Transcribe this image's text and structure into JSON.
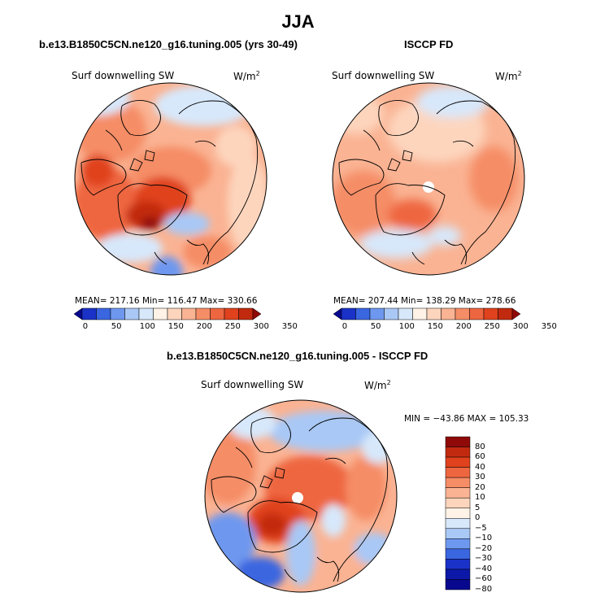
{
  "figure": {
    "main_title": "JJA",
    "top_left": {
      "title": "b.e13.B1850C5CN.ne120_g16.tuning.005 (yrs 30-49)",
      "field": "Surf downwelling SW",
      "units": "W/m",
      "units_exp": "2",
      "stats": "MEAN= 217.16   Min= 116.47   Max= 330.66"
    },
    "top_right": {
      "title": "ISCCP FD",
      "field": "Surf downwelling SW",
      "units": "W/m",
      "units_exp": "2",
      "stats": "MEAN= 207.44   Min= 138.29   Max= 278.66"
    },
    "bottom": {
      "title": "b.e13.B1850C5CN.ne120_g16.tuning.005 - ISCCP FD",
      "field": "Surf downwelling SW",
      "units": "W/m",
      "units_exp": "2",
      "stats": "MIN = −43.86  MAX = 105.33"
    }
  },
  "chart_data": [
    {
      "type": "heatmap",
      "title": "b.e13.B1850C5CN.ne120_g16.tuning.005 (yrs 30-49)",
      "variable": "Surf downwelling SW",
      "units": "W/m2",
      "projection": "polar stereographic (north)",
      "mean": 217.16,
      "min": 116.47,
      "max": 330.66,
      "colorbar_ticks": [
        "0",
        "50",
        "100",
        "150",
        "200",
        "250",
        "300",
        "350"
      ],
      "colorbar_colors": [
        "#08088f",
        "#1a32c8",
        "#3a66e0",
        "#6e98ef",
        "#a9c8f5",
        "#d7e8fb",
        "#fff2e6",
        "#fdd5bd",
        "#fab393",
        "#f58d66",
        "#ee6640",
        "#e0421d",
        "#c22a0f",
        "#8f0a08"
      ]
    },
    {
      "type": "heatmap",
      "title": "ISCCP FD",
      "variable": "Surf downwelling SW",
      "units": "W/m2",
      "projection": "polar stereographic (north)",
      "mean": 207.44,
      "min": 138.29,
      "max": 278.66,
      "colorbar_ticks": [
        "0",
        "50",
        "100",
        "150",
        "200",
        "250",
        "300",
        "350"
      ],
      "colorbar_colors": [
        "#08088f",
        "#1a32c8",
        "#3a66e0",
        "#6e98ef",
        "#a9c8f5",
        "#d7e8fb",
        "#fff2e6",
        "#fdd5bd",
        "#fab393",
        "#f58d66",
        "#ee6640",
        "#e0421d",
        "#c22a0f",
        "#8f0a08"
      ]
    },
    {
      "type": "heatmap",
      "title": "b.e13.B1850C5CN.ne120_g16.tuning.005 - ISCCP FD",
      "variable": "Surf downwelling SW",
      "units": "W/m2",
      "projection": "polar stereographic (north)",
      "min": -43.86,
      "max": 105.33,
      "colorbar_ticks": [
        "80",
        "60",
        "40",
        "30",
        "20",
        "10",
        "5",
        "0",
        "−5",
        "−10",
        "−20",
        "−30",
        "−40",
        "−60",
        "−80"
      ],
      "colorbar_colors": [
        "#8f0a08",
        "#c22a0f",
        "#e0421d",
        "#ee6640",
        "#f58d66",
        "#fab393",
        "#fdd5bd",
        "#fff2e6",
        "#d7e8fb",
        "#a9c8f5",
        "#6e98ef",
        "#3a66e0",
        "#1a32c8",
        "#0c18a8",
        "#08088f"
      ]
    }
  ]
}
